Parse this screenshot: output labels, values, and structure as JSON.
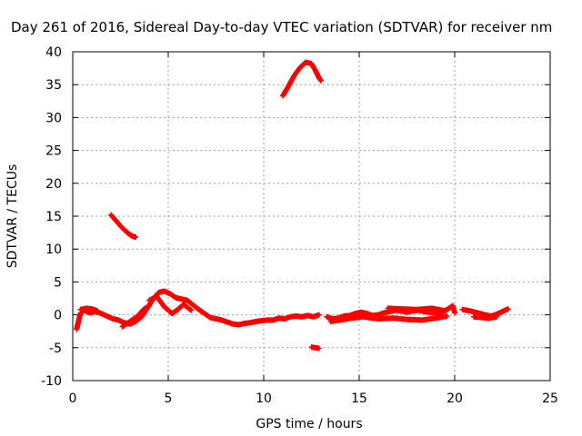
{
  "chart_data": {
    "type": "scatter",
    "title": "Day 261 of 2016, Sidereal Day-to-day VTEC variation (SDTVAR) for receiver nm",
    "xlabel": "GPS time / hours",
    "ylabel": "SDTVAR / TECUs",
    "xlim": [
      0,
      25
    ],
    "ylim": [
      -10,
      40
    ],
    "xticks": [
      0,
      5,
      10,
      15,
      20,
      25
    ],
    "yticks": [
      -10,
      -5,
      0,
      5,
      10,
      15,
      20,
      25,
      30,
      35,
      40
    ],
    "grid": true,
    "marker": "plus",
    "series": [
      {
        "name": "SDTVAR",
        "color": "#ff0000",
        "segments": [
          [
            [
              0.2,
              -2.2
            ],
            [
              0.3,
              -1.0
            ],
            [
              0.4,
              0.2
            ],
            [
              0.6,
              0.7
            ],
            [
              0.9,
              0.3
            ],
            [
              1.2,
              0.5
            ],
            [
              1.5,
              0.2
            ],
            [
              1.8,
              -0.2
            ],
            [
              2.1,
              -0.6
            ],
            [
              2.4,
              -0.8
            ],
            [
              2.7,
              -1.2
            ],
            [
              3.0,
              -1.4
            ],
            [
              3.3,
              -1.0
            ],
            [
              3.6,
              -0.3
            ],
            [
              3.9,
              1.0
            ],
            [
              4.2,
              2.4
            ],
            [
              4.5,
              3.4
            ],
            [
              4.8,
              3.6
            ],
            [
              5.1,
              3.2
            ],
            [
              5.4,
              2.6
            ],
            [
              5.7,
              2.4
            ],
            [
              6.0,
              2.2
            ],
            [
              6.3,
              1.5
            ],
            [
              6.6,
              0.8
            ],
            [
              6.9,
              0.2
            ],
            [
              7.2,
              -0.4
            ],
            [
              7.5,
              -0.6
            ],
            [
              7.8,
              -0.8
            ],
            [
              8.1,
              -1.1
            ],
            [
              8.4,
              -1.4
            ],
            [
              8.7,
              -1.5
            ],
            [
              9.0,
              -1.3
            ],
            [
              9.3,
              -1.2
            ],
            [
              9.6,
              -1.0
            ],
            [
              9.9,
              -0.9
            ],
            [
              10.2,
              -0.8
            ],
            [
              10.5,
              -0.8
            ],
            [
              10.8,
              -0.5
            ],
            [
              11.1,
              -0.6
            ],
            [
              11.4,
              -0.3
            ],
            [
              11.7,
              -0.2
            ],
            [
              12.0,
              -0.3
            ],
            [
              12.3,
              -0.1
            ],
            [
              12.6,
              -0.3
            ],
            [
              12.9,
              0.0
            ]
          ],
          [
            [
              4.0,
              2.2
            ],
            [
              4.4,
              2.8
            ],
            [
              4.8,
              1.2
            ],
            [
              5.2,
              0.2
            ],
            [
              5.5,
              0.8
            ],
            [
              5.8,
              1.6
            ],
            [
              6.2,
              0.7
            ]
          ],
          [
            [
              2.6,
              -1.8
            ],
            [
              3.0,
              -1.0
            ],
            [
              3.4,
              -0.2
            ],
            [
              3.7,
              0.8
            ],
            [
              4.0,
              1.4
            ]
          ],
          [
            [
              0.4,
              0.8
            ],
            [
              0.7,
              1.0
            ],
            [
              1.0,
              0.9
            ],
            [
              1.3,
              0.6
            ]
          ],
          [
            [
              2.0,
              15.2
            ],
            [
              2.3,
              14.2
            ],
            [
              2.6,
              13.2
            ],
            [
              2.9,
              12.4
            ],
            [
              3.1,
              12.0
            ],
            [
              3.3,
              11.8
            ]
          ],
          [
            [
              11.0,
              33.3
            ],
            [
              11.3,
              34.8
            ],
            [
              11.6,
              36.4
            ],
            [
              11.9,
              37.6
            ],
            [
              12.2,
              38.4
            ],
            [
              12.5,
              38.2
            ],
            [
              12.7,
              37.2
            ],
            [
              12.9,
              36.0
            ],
            [
              13.0,
              35.6
            ]
          ],
          [
            [
              12.5,
              -4.9
            ],
            [
              12.7,
              -5.0
            ],
            [
              12.9,
              -5.1
            ]
          ],
          [
            [
              13.3,
              -0.3
            ],
            [
              13.6,
              -0.6
            ],
            [
              13.9,
              -0.5
            ],
            [
              14.2,
              -0.2
            ],
            [
              14.5,
              -0.1
            ],
            [
              14.8,
              0.2
            ],
            [
              15.1,
              0.4
            ],
            [
              15.4,
              0.2
            ],
            [
              15.7,
              -0.1
            ],
            [
              16.0,
              0.0
            ],
            [
              16.3,
              0.3
            ],
            [
              16.6,
              0.5
            ],
            [
              16.9,
              0.7
            ],
            [
              17.2,
              0.6
            ],
            [
              17.5,
              0.4
            ],
            [
              17.8,
              0.6
            ],
            [
              18.1,
              0.7
            ],
            [
              18.4,
              0.5
            ],
            [
              18.7,
              0.4
            ],
            [
              19.0,
              0.3
            ],
            [
              19.3,
              0.4
            ],
            [
              19.6,
              0.8
            ],
            [
              19.9,
              1.4
            ],
            [
              20.0,
              0.3
            ]
          ],
          [
            [
              13.5,
              -1.0
            ],
            [
              14.0,
              -0.8
            ],
            [
              14.6,
              -0.5
            ],
            [
              15.2,
              -0.3
            ],
            [
              16.0,
              -0.6
            ],
            [
              16.8,
              -0.5
            ],
            [
              17.5,
              -0.7
            ],
            [
              18.3,
              -0.8
            ],
            [
              19.0,
              -0.5
            ],
            [
              19.6,
              -0.2
            ]
          ],
          [
            [
              16.5,
              1.0
            ],
            [
              17.2,
              0.9
            ],
            [
              18.0,
              0.8
            ],
            [
              18.8,
              1.0
            ],
            [
              19.5,
              0.6
            ]
          ],
          [
            [
              20.4,
              0.8
            ],
            [
              20.8,
              0.6
            ],
            [
              21.2,
              0.3
            ],
            [
              21.6,
              0.0
            ],
            [
              21.9,
              -0.2
            ],
            [
              22.2,
              0.1
            ],
            [
              22.5,
              0.5
            ],
            [
              22.8,
              0.9
            ]
          ],
          [
            [
              21.0,
              -0.3
            ],
            [
              21.4,
              -0.4
            ],
            [
              21.8,
              -0.5
            ],
            [
              22.2,
              -0.3
            ]
          ]
        ]
      }
    ]
  }
}
